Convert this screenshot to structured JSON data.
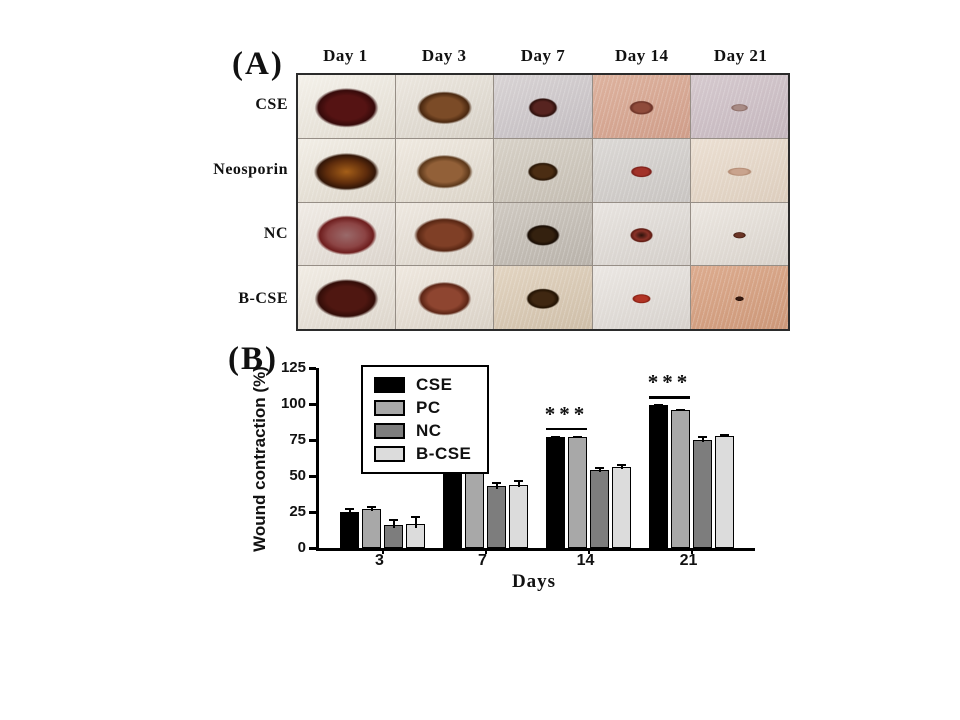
{
  "figure": {
    "panel_a": {
      "label": "(A)",
      "day_headers": [
        "Day 1",
        "Day 3",
        "Day 7",
        "Day 14",
        "Day 21"
      ],
      "row_labels": [
        "CSE",
        "Neosporin",
        "NC",
        "B-CSE"
      ],
      "photos": [
        [
          {
            "bg": "#f4f1ea",
            "bg2": "#e0dacf",
            "wound": "#551313",
            "edge": "#360a0a",
            "wr": 44,
            "hr": 42
          },
          {
            "bg": "#ece7df",
            "bg2": "#d6d0c6",
            "wound": "#7b4b27",
            "edge": "#4a2810",
            "wr": 38,
            "hr": 35
          },
          {
            "bg": "#d8d3d4",
            "bg2": "#c2bcc0",
            "wound": "#572420",
            "edge": "#2e100c",
            "wr": 20,
            "hr": 21
          },
          {
            "bg": "#ddb29e",
            "bg2": "#cf9d89",
            "wound": "#8f4b3b",
            "edge": "#6b3226",
            "wr": 17,
            "hr": 15
          },
          {
            "bg": "#d5c9ce",
            "bg2": "#c4b6bd",
            "wound": "#a88b85",
            "edge": "#8a6a64",
            "wr": 12,
            "hr": 8
          }
        ],
        [
          {
            "bg": "#f2eee6",
            "bg2": "#dcd5c9",
            "core": "#a55f18",
            "wound": "#5e2c0c",
            "edge": "#331607",
            "wr": 45,
            "hr": 40
          },
          {
            "bg": "#efe9e0",
            "bg2": "#dad3c7",
            "wound": "#926038",
            "edge": "#5c381a",
            "wr": 39,
            "hr": 36
          },
          {
            "bg": "#d7d1c7",
            "bg2": "#c4bdb2",
            "wound": "#4b2d13",
            "edge": "#291606",
            "wr": 21,
            "hr": 20
          },
          {
            "bg": "#dbd8d5",
            "bg2": "#c8c4c1",
            "wound": "#a23229",
            "edge": "#7a1e18",
            "wr": 15,
            "hr": 12
          },
          {
            "bg": "#ebdfd2",
            "bg2": "#dccdbd",
            "wound": "#c9a38d",
            "edge": "#b28a72",
            "wr": 17,
            "hr": 9
          }
        ],
        [
          {
            "bg": "#f0ebe5",
            "bg2": "#dbd4cc",
            "core": "#9a6a6a",
            "wound": "#8c4444",
            "edge": "#6e1e1e",
            "wr": 42,
            "hr": 43
          },
          {
            "bg": "#eee8e0",
            "bg2": "#d8d1c7",
            "wound": "#7f3f26",
            "edge": "#572613",
            "wr": 42,
            "hr": 38
          },
          {
            "bg": "#cfc9c1",
            "bg2": "#b8b2aa",
            "wound": "#34210f",
            "edge": "#190d04",
            "wr": 23,
            "hr": 23
          },
          {
            "bg": "#e8e4e0",
            "bg2": "#d3cec9",
            "core": "#2c120b",
            "wound": "#8a3228",
            "edge": "#5e1b12",
            "wr": 16,
            "hr": 16
          },
          {
            "bg": "#ece7e1",
            "bg2": "#d7d1ca",
            "wound": "#6b3526",
            "edge": "#421c10",
            "wr": 9,
            "hr": 7
          }
        ],
        [
          {
            "bg": "#f1ece4",
            "bg2": "#dcd5cb",
            "wound": "#4f1711",
            "edge": "#330d08",
            "wr": 44,
            "hr": 42
          },
          {
            "bg": "#efe8df",
            "bg2": "#d9d1c6",
            "wound": "#8e4530",
            "edge": "#5c2515",
            "wr": 37,
            "hr": 36
          },
          {
            "bg": "#e2d4c1",
            "bg2": "#cebea8",
            "wound": "#3f2711",
            "edge": "#221202",
            "wr": 23,
            "hr": 22
          },
          {
            "bg": "#ebe7e3",
            "bg2": "#d6d1cc",
            "wound": "#b23425",
            "edge": "#871f12",
            "wr": 13,
            "hr": 10
          },
          {
            "bg": "#dcab8e",
            "bg2": "#cc9778",
            "wound": "#381a10",
            "edge": "#1d0b04",
            "wr": 6,
            "hr": 5
          }
        ]
      ]
    },
    "panel_b": {
      "label": "(B)"
    }
  },
  "chart_data": {
    "type": "bar",
    "title": "",
    "xlabel": "Days",
    "ylabel": "Wound contraction (%)",
    "categories": [
      "3",
      "7",
      "14",
      "21"
    ],
    "series": [
      {
        "name": "CSE",
        "color": "#000000",
        "values": [
          25,
          56,
          77,
          99
        ],
        "errors": [
          3,
          1.5,
          1,
          1
        ]
      },
      {
        "name": "PC",
        "color": "#a8a8a8",
        "values": [
          27,
          57,
          77,
          96
        ],
        "errors": [
          2,
          2,
          1,
          0.5
        ]
      },
      {
        "name": "NC",
        "color": "#7d7d7d",
        "values": [
          16,
          43,
          54,
          75
        ],
        "errors": [
          4,
          3,
          2.5,
          2.5
        ]
      },
      {
        "name": "B-CSE",
        "color": "#dcdcdc",
        "values": [
          17,
          44,
          56,
          78
        ],
        "errors": [
          5,
          3,
          2,
          1
        ]
      }
    ],
    "ylim": [
      0,
      125
    ],
    "yticks": [
      0,
      25,
      50,
      75,
      100,
      125
    ],
    "grid": false,
    "legend_position": "inside-top-left",
    "significance": [
      {
        "category_index": 1,
        "label": "**",
        "span": [
          "CSE",
          "PC"
        ]
      },
      {
        "category_index": 2,
        "label": "***",
        "span": [
          "CSE",
          "PC"
        ]
      },
      {
        "category_index": 3,
        "label": "***",
        "span": [
          "CSE",
          "PC"
        ]
      }
    ]
  }
}
